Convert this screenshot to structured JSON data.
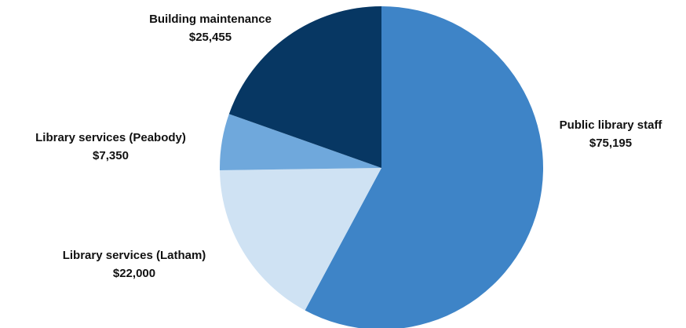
{
  "chart_data": {
    "type": "pie",
    "title": "",
    "start_angle_deg": 0,
    "direction": "clockwise",
    "slices": [
      {
        "label": "Public library staff",
        "value_label": "$75,195",
        "value": 75195,
        "color": "#3e84c7"
      },
      {
        "label": "Library services (Latham)",
        "value_label": "$22,000",
        "value": 22000,
        "color": "#cfe2f3"
      },
      {
        "label": "Library services (Peabody)",
        "value_label": "$7,350",
        "value": 7350,
        "color": "#6fa8dc"
      },
      {
        "label": "Building maintenance",
        "value_label": "$25,455",
        "value": 25455,
        "color": "#073763"
      }
    ]
  }
}
